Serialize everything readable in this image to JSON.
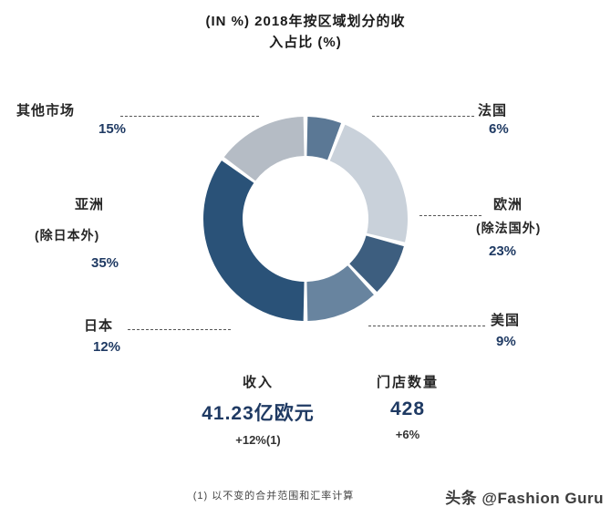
{
  "title": {
    "line1": "(IN %) 2018年按区域划分的收",
    "line2": "入占比 (%)"
  },
  "chart_data": {
    "type": "pie",
    "subtype": "donut",
    "title": "(IN %) 2018年按区域划分的收入占比 (%)",
    "start_angle_deg": 0,
    "clockwise": true,
    "inner_radius_ratio": 0.62,
    "legend": "none",
    "segments": [
      {
        "id": "france",
        "label": "法国",
        "value": 6,
        "pct_label": "6%",
        "color": "#5b7895"
      },
      {
        "id": "europe",
        "label": "欧洲 (除法国外)",
        "value": 23,
        "pct_label": "23%",
        "color": "#c9d1da"
      },
      {
        "id": "usa",
        "label": "美国",
        "value": 9,
        "pct_label": "9%",
        "color": "#3d5e7f"
      },
      {
        "id": "japan",
        "label": "日本",
        "value": 12,
        "pct_label": "12%",
        "color": "#68849f"
      },
      {
        "id": "asia",
        "label": "亚洲 (除日本外)",
        "value": 35,
        "pct_label": "35%",
        "color": "#2a5278"
      },
      {
        "id": "other",
        "label": "其他市场",
        "value": 15,
        "pct_label": "15%",
        "color": "#b5bcc5"
      }
    ]
  },
  "callouts": {
    "other": {
      "name": "其他市场",
      "pct": "15%"
    },
    "france": {
      "name": "法国",
      "pct": "6%"
    },
    "europe": {
      "name": "欧洲",
      "sub": "(除法国外)",
      "pct": "23%"
    },
    "usa": {
      "name": "美国",
      "pct": "9%"
    },
    "japan": {
      "name": "日本",
      "pct": "12%"
    },
    "asia": {
      "name": "亚洲",
      "sub": "(除日本外)",
      "pct": "35%"
    }
  },
  "stats": {
    "revenue": {
      "label": "收入",
      "value": "41.23亿欧元",
      "change": "+12%(1)"
    },
    "stores": {
      "label": "门店数量",
      "value": "428",
      "change": "+6%"
    }
  },
  "footnote": "(1) 以不变的合并范围和汇率计算",
  "watermark": "头条 @Fashion Guru",
  "colors": {
    "accent_navy": "#1f3a63",
    "text_dark": "#262626",
    "dash_line": "#555555"
  }
}
